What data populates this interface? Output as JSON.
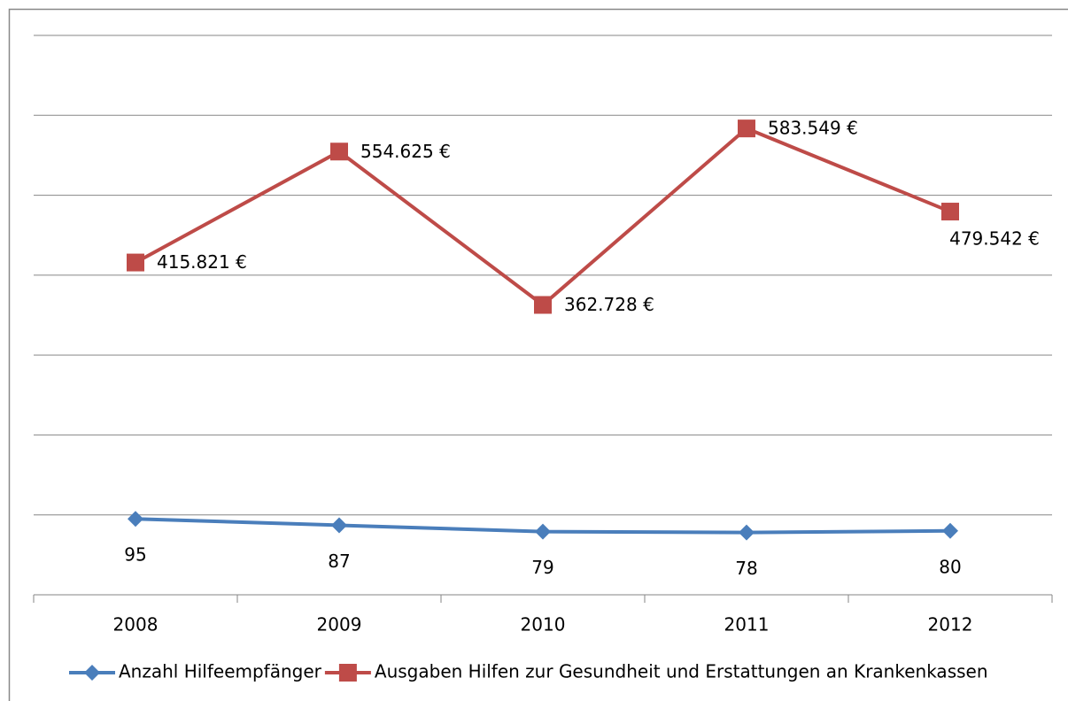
{
  "chart_data": {
    "type": "line",
    "categories": [
      "2008",
      "2009",
      "2010",
      "2011",
      "2012"
    ],
    "series": [
      {
        "name": "Anzahl Hilfeempfänger",
        "color": "#4a7ebb",
        "axis": "y2",
        "values": [
          95,
          87,
          79,
          78,
          80
        ]
      },
      {
        "name": "Ausgaben Hilfen zur Gesundheit und Erstattungen an Krankenkassen",
        "color": "#be4b48",
        "values": [
          415821,
          554625,
          362728,
          583549,
          479542
        ],
        "value_labels": [
          "415.821 €",
          "554.625 €",
          "362.728 €",
          "583.549 €",
          "479.542 €"
        ]
      }
    ],
    "ylim": [
      0,
      700000
    ],
    "yticks": [
      0,
      100000,
      200000,
      300000,
      400000,
      500000,
      600000,
      700000
    ],
    "y2lim": [
      0,
      700
    ],
    "grid": true,
    "legend": "bottom"
  }
}
